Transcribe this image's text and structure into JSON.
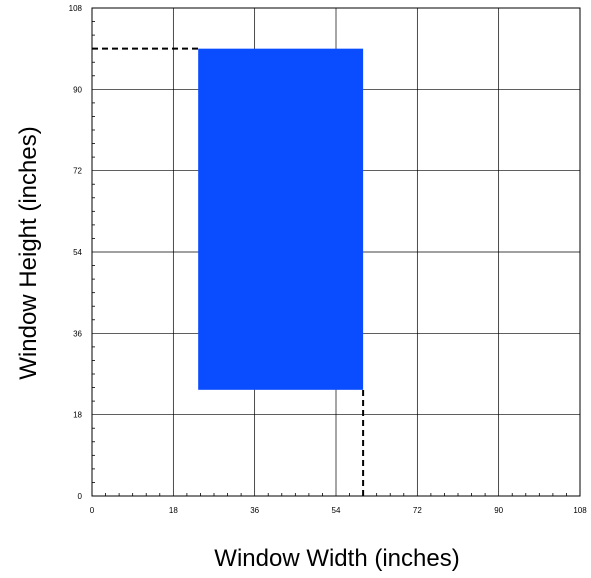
{
  "chart_data": {
    "type": "area",
    "title": "",
    "xlabel": "Window Width (inches)",
    "ylabel": "Window Height (inches)",
    "xlim": [
      0,
      108
    ],
    "ylim": [
      0,
      108
    ],
    "x_ticks": [
      0,
      18,
      36,
      54,
      72,
      90,
      108
    ],
    "y_ticks": [
      0,
      18,
      36,
      54,
      72,
      90,
      108
    ],
    "x_tick_labels": [
      "0",
      "18",
      "36",
      "54",
      "72",
      "90",
      "108"
    ],
    "y_tick_labels": [
      "0",
      "18",
      "36",
      "54",
      "72",
      "90",
      "108"
    ],
    "minor_ticks_per_interval": 6,
    "grid": true,
    "region": {
      "x_min": 23.5,
      "x_max": 60,
      "y_min": 23.5,
      "y_max": 99,
      "color": "#0a4cff"
    },
    "reference_lines": [
      {
        "type": "vertical",
        "x": 60,
        "from_y": 0,
        "to_y": 23.5,
        "style": "dashed"
      },
      {
        "type": "horizontal",
        "y": 99,
        "from_x": 0,
        "to_x": 23.5,
        "style": "dashed"
      }
    ]
  }
}
